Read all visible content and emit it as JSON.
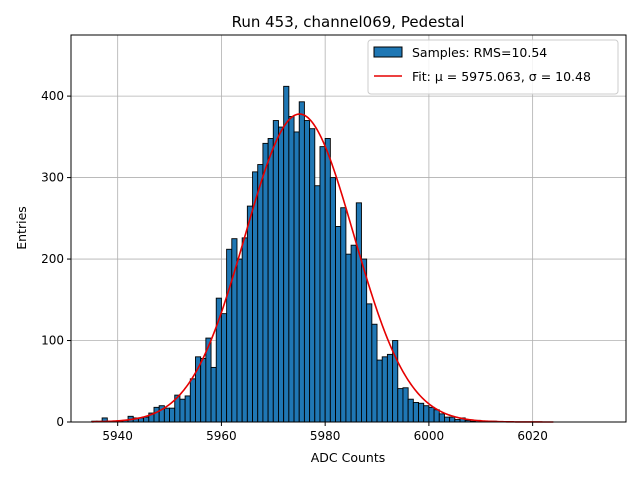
{
  "chart_data": {
    "type": "bar",
    "title": "Run 453, channel069, Pedestal",
    "xlabel": "ADC Counts",
    "ylabel": "Entries",
    "xlim": [
      5931,
      6038
    ],
    "ylim": [
      0,
      475
    ],
    "xticks": [
      5940,
      5960,
      5980,
      6000,
      6020
    ],
    "yticks": [
      0,
      100,
      200,
      300,
      400
    ],
    "grid": true,
    "legend_position": "top-right",
    "legend": [
      {
        "label": "Samples: RMS=10.54",
        "kind": "patch"
      },
      {
        "label": "Fit: μ = 5975.063, σ = 10.48",
        "kind": "line"
      }
    ],
    "colors": {
      "bars": "#1f77b4",
      "bar_edge": "#000000",
      "fit": "#e60000",
      "grid": "#b0b0b0"
    },
    "histogram": {
      "name": "Samples: RMS=10.54",
      "bin_start": 5935,
      "bin_width": 1,
      "counts": [
        1,
        1,
        5,
        1,
        1,
        1,
        2,
        7,
        5,
        5,
        6,
        11,
        18,
        20,
        17,
        17,
        33,
        28,
        32,
        53,
        80,
        78,
        103,
        67,
        152,
        133,
        212,
        225,
        200,
        226,
        265,
        307,
        316,
        342,
        348,
        370,
        362,
        412,
        375,
        356,
        393,
        370,
        360,
        290,
        338,
        348,
        300,
        240,
        263,
        206,
        217,
        269,
        200,
        145,
        120,
        76,
        80,
        83,
        100,
        41,
        42,
        28,
        24,
        23,
        20,
        18,
        15,
        10,
        6,
        6,
        3,
        5,
        2,
        1,
        2,
        1,
        1,
        1
      ]
    },
    "fit": {
      "name": "Fit: μ = 5975.063, σ = 10.48",
      "mu": 5975.063,
      "sigma": 10.48,
      "amplitude": 378,
      "x_range": [
        5935,
        6024
      ]
    }
  }
}
